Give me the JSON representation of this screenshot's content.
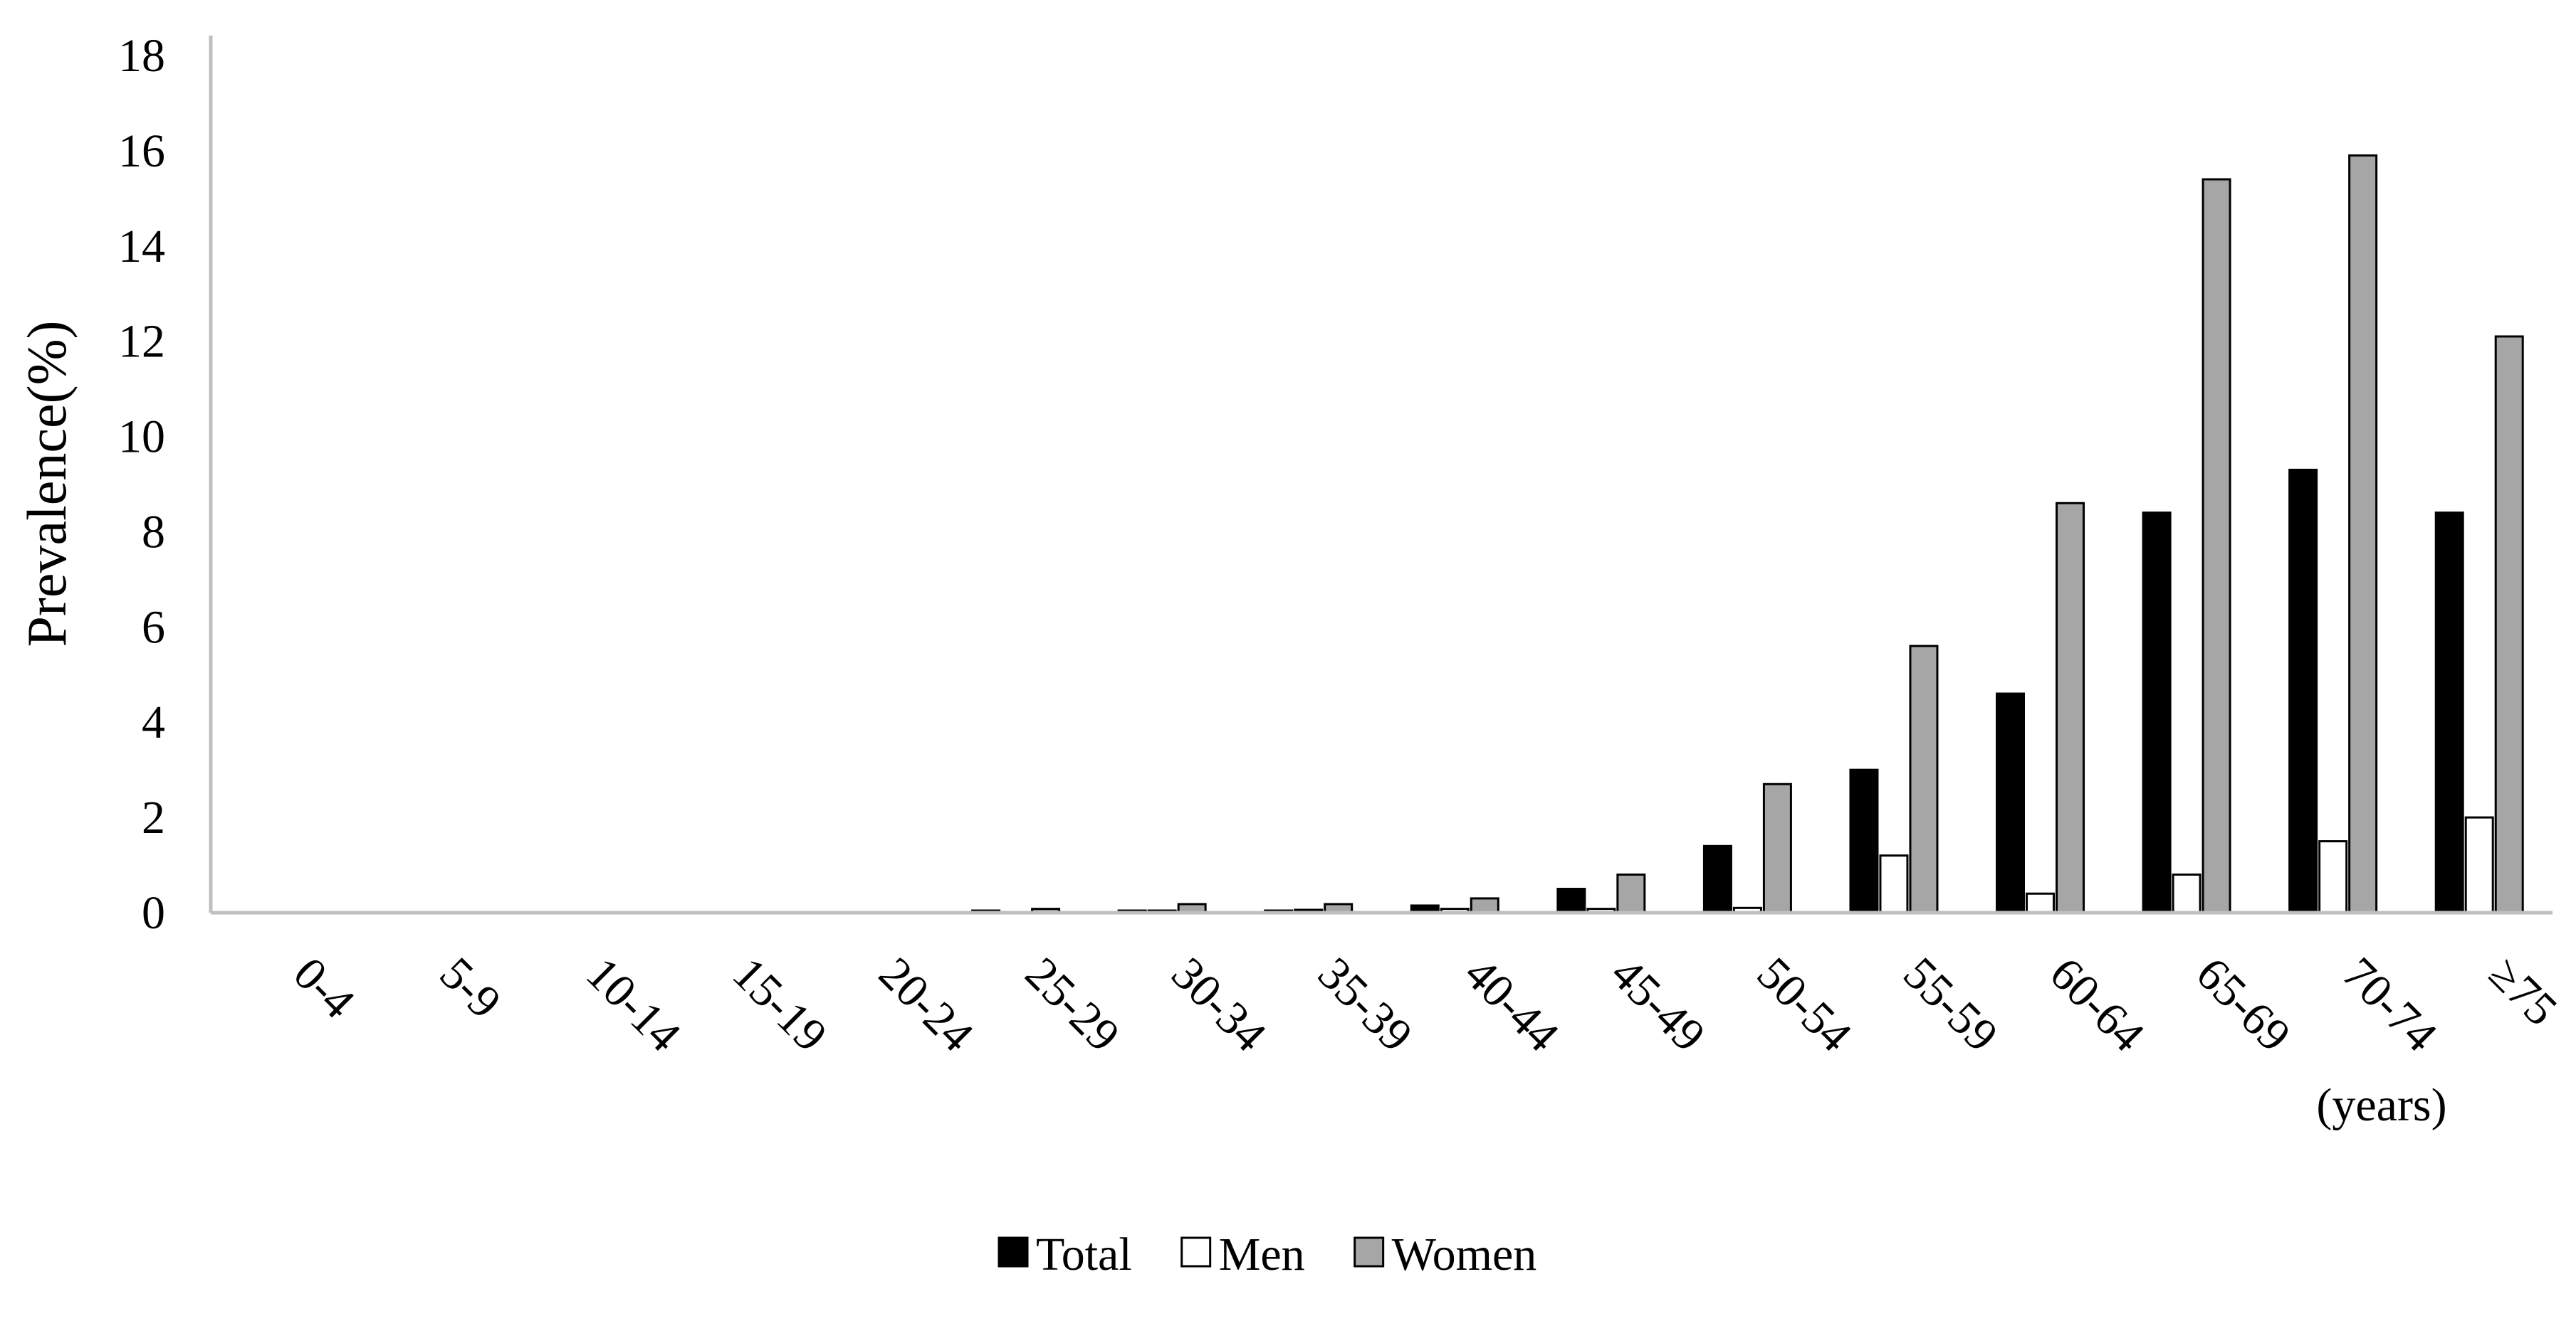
{
  "chart_data": {
    "type": "bar",
    "title": "",
    "ylabel": "Prevalence(%)",
    "xunit": "(years)",
    "ylim": [
      0,
      18
    ],
    "yticks": [
      0,
      2,
      4,
      6,
      8,
      10,
      12,
      14,
      16,
      18
    ],
    "grid": false,
    "legend_position": "bottom",
    "categories": [
      "0-4",
      "5-9",
      "10-14",
      "15-19",
      "20-24",
      "25-29",
      "30-34",
      "35-39",
      "40-44",
      "45-49",
      "50-54",
      "55-59",
      "60-64",
      "65-69",
      "70-74",
      "≥75"
    ],
    "series": [
      {
        "name": "Total",
        "color": "#000000",
        "values": [
          0,
          0,
          0,
          0,
          0,
          0.02,
          0.02,
          0.04,
          0.15,
          0.5,
          1.4,
          3.0,
          4.6,
          8.4,
          9.3,
          8.4
        ]
      },
      {
        "name": "Men",
        "color": "#ffffff",
        "values": [
          0,
          0,
          0,
          0,
          0,
          0,
          0.01,
          0.06,
          0.08,
          0.08,
          0.1,
          1.2,
          0.4,
          0.8,
          1.5,
          2.0
        ]
      },
      {
        "name": "Women",
        "color": "#a6a6a6",
        "values": [
          0,
          0,
          0,
          0,
          0,
          0.08,
          0.18,
          0.18,
          0.3,
          0.8,
          2.7,
          5.6,
          8.6,
          15.4,
          15.9,
          12.1
        ]
      }
    ]
  }
}
